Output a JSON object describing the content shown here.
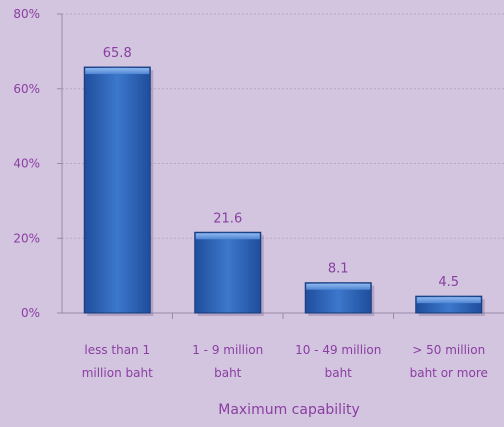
{
  "chart_data": {
    "type": "bar",
    "categories": [
      [
        "less than 1",
        "million baht"
      ],
      [
        "1 - 9 million",
        "baht"
      ],
      [
        "10 - 49 million",
        "baht"
      ],
      [
        "> 50 million",
        "baht or more"
      ]
    ],
    "values": [
      65.8,
      21.6,
      8.1,
      4.5
    ],
    "data_labels": [
      "65.8",
      "21.6",
      "8.1",
      "4.5"
    ],
    "xlabel": "Maximum capability",
    "ylabel": "",
    "ylim": [
      0,
      80
    ],
    "yticks": [
      0,
      20,
      40,
      60,
      80
    ],
    "ytick_labels": [
      "0%",
      "20%",
      "40%",
      "60%",
      "80%"
    ],
    "grid": true,
    "legend": "none",
    "colors": {
      "background": "#d3c4e0",
      "bar_top": "#4f8ad8",
      "bar_mid": "#2e63b8",
      "bar_bottom": "#1b4591",
      "bar_edge": "#163a7a",
      "text": "#8a3fa0",
      "axis": "#9a8aa8",
      "grid": "#b8a8c6"
    }
  }
}
